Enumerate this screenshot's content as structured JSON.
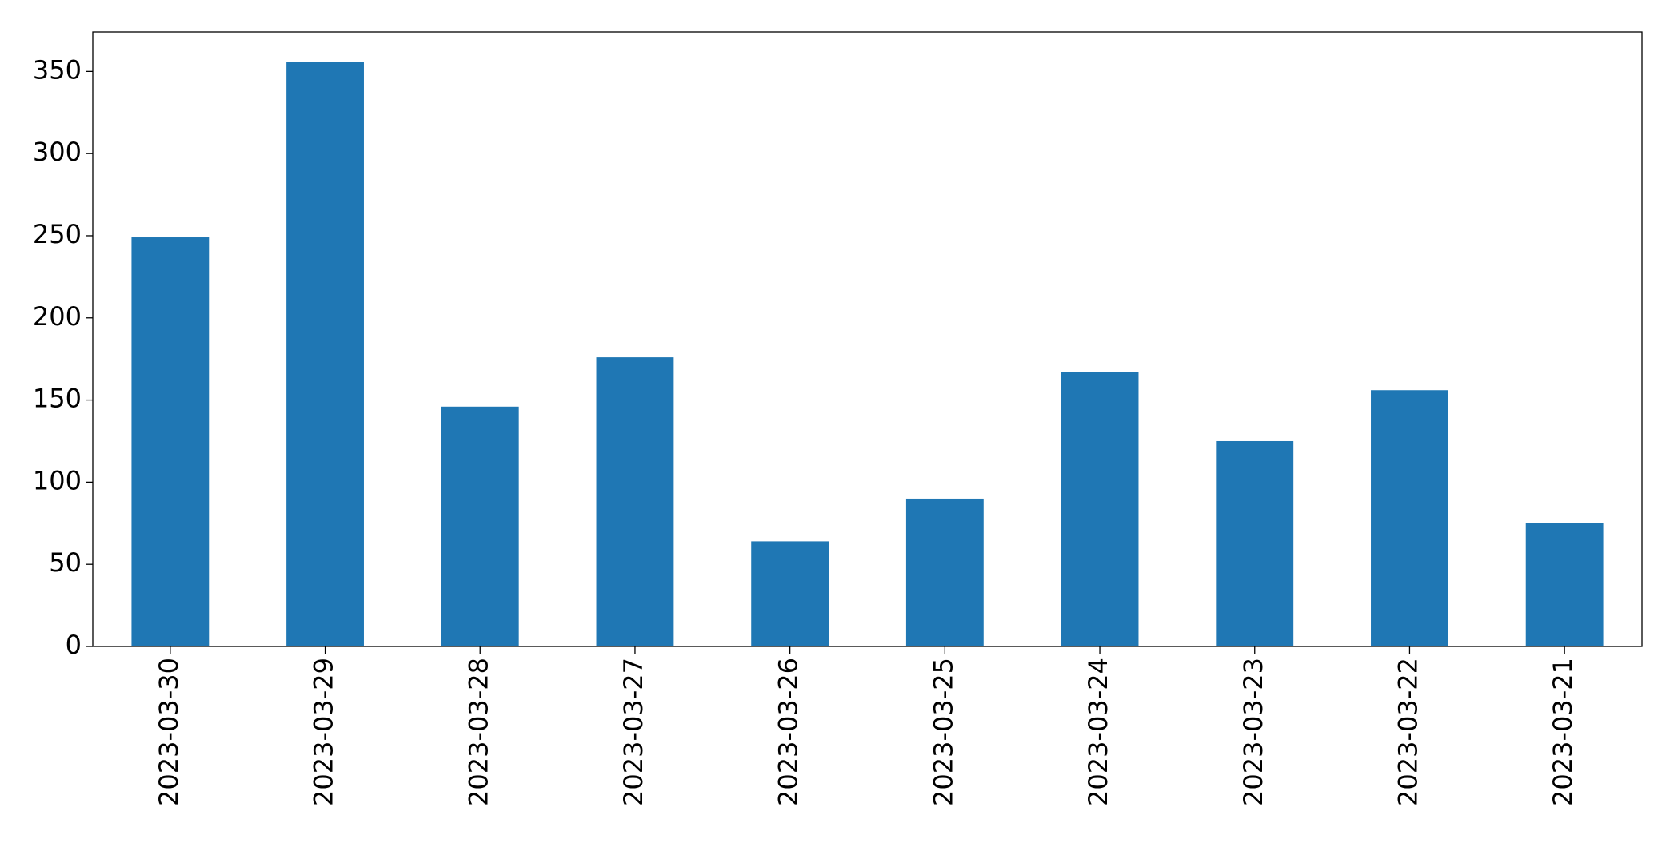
{
  "chart_data": {
    "type": "bar",
    "categories": [
      "2023-03-30",
      "2023-03-29",
      "2023-03-28",
      "2023-03-27",
      "2023-03-26",
      "2023-03-25",
      "2023-03-24",
      "2023-03-23",
      "2023-03-22",
      "2023-03-21"
    ],
    "values": [
      249,
      356,
      146,
      176,
      64,
      90,
      167,
      125,
      156,
      75
    ],
    "color": "#1f77b4",
    "ylim": [
      0,
      374
    ],
    "yticks": [
      0,
      50,
      100,
      150,
      200,
      250,
      300,
      350
    ],
    "grid": false
  }
}
